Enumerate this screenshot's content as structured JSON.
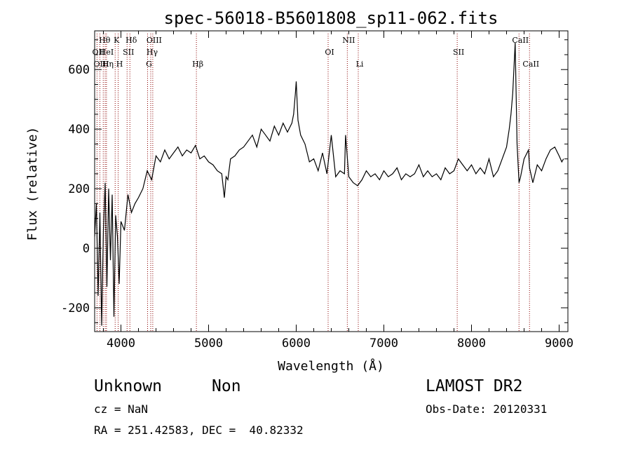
{
  "chart_data": {
    "type": "line",
    "title": "spec-56018-B5601808_sp11-062.fits",
    "xlabel": "Wavelength (Å)",
    "ylabel": "Flux (relative)",
    "xlim": [
      3700,
      9100
    ],
    "ylim": [
      -280,
      730
    ],
    "xticks": [
      4000,
      5000,
      6000,
      7000,
      8000,
      9000
    ],
    "yticks": [
      -200,
      0,
      200,
      400,
      600
    ],
    "grid": false,
    "line_color": "#000000",
    "line_marker_color": "#8b0000",
    "series": [
      {
        "x": [
          3700,
          3720,
          3740,
          3760,
          3780,
          3800,
          3820,
          3840,
          3860,
          3880,
          3900,
          3920,
          3940,
          3960,
          3980,
          4000,
          4040,
          4080,
          4120,
          4160,
          4200,
          4250,
          4300,
          4350,
          4400,
          4450,
          4500,
          4550,
          4600,
          4650,
          4700,
          4750,
          4800,
          4850,
          4900,
          4950,
          5000,
          5050,
          5100,
          5150,
          5180,
          5200,
          5220,
          5250,
          5300,
          5350,
          5400,
          5450,
          5500,
          5550,
          5600,
          5650,
          5700,
          5750,
          5800,
          5850,
          5900,
          5950,
          5970,
          5990,
          6000,
          6020,
          6050,
          6100,
          6150,
          6200,
          6250,
          6300,
          6350,
          6400,
          6450,
          6500,
          6550,
          6563,
          6600,
          6650,
          6700,
          6750,
          6800,
          6850,
          6900,
          6950,
          7000,
          7050,
          7100,
          7150,
          7200,
          7250,
          7300,
          7350,
          7400,
          7450,
          7500,
          7550,
          7600,
          7650,
          7700,
          7750,
          7800,
          7850,
          7900,
          7950,
          8000,
          8050,
          8100,
          8150,
          8200,
          8250,
          8300,
          8350,
          8400,
          8430,
          8450,
          8470,
          8498,
          8520,
          8542,
          8560,
          8600,
          8650,
          8662,
          8700,
          8750,
          8800,
          8850,
          8900,
          8950,
          9000,
          9030,
          9050
        ],
        "y": [
          40,
          150,
          -160,
          120,
          -260,
          60,
          220,
          -130,
          200,
          -40,
          180,
          -230,
          110,
          40,
          -120,
          90,
          60,
          180,
          120,
          150,
          170,
          200,
          260,
          230,
          310,
          290,
          330,
          300,
          320,
          340,
          310,
          330,
          320,
          345,
          300,
          310,
          290,
          280,
          260,
          250,
          170,
          240,
          230,
          300,
          310,
          330,
          340,
          360,
          380,
          340,
          400,
          380,
          360,
          410,
          380,
          420,
          390,
          420,
          450,
          520,
          560,
          430,
          380,
          350,
          290,
          300,
          260,
          320,
          250,
          380,
          240,
          260,
          250,
          380,
          240,
          220,
          210,
          230,
          260,
          240,
          250,
          230,
          260,
          240,
          250,
          270,
          230,
          250,
          240,
          250,
          280,
          240,
          260,
          240,
          250,
          230,
          270,
          250,
          260,
          300,
          280,
          260,
          280,
          250,
          270,
          250,
          300,
          240,
          260,
          300,
          340,
          400,
          450,
          520,
          690,
          350,
          220,
          240,
          300,
          330,
          270,
          220,
          280,
          260,
          300,
          330,
          340,
          310,
          290,
          300
        ]
      }
    ],
    "line_labels": [
      {
        "label": "Hθ",
        "x": 3798,
        "row": 0
      },
      {
        "label": "OII",
        "x": 3727,
        "row": 1
      },
      {
        "label": "HeI",
        "x": 3820,
        "row": 1
      },
      {
        "label": "OIII",
        "x": 3760,
        "row": 2
      },
      {
        "label": "Hη",
        "x": 3835,
        "row": 2
      },
      {
        "label": "K",
        "x": 3934,
        "row": 0
      },
      {
        "label": "SII",
        "x": 4070,
        "row": 1
      },
      {
        "label": "H",
        "x": 3968,
        "row": 2
      },
      {
        "label": "Hδ",
        "x": 4102,
        "row": 0
      },
      {
        "label": "OIII",
        "x": 4363,
        "row": 0
      },
      {
        "label": "Hγ",
        "x": 4340,
        "row": 1
      },
      {
        "label": "G",
        "x": 4304,
        "row": 2
      },
      {
        "label": "Hβ",
        "x": 4861,
        "row": 2
      },
      {
        "label": "OI",
        "x": 6364,
        "row": 1
      },
      {
        "label": "NII",
        "x": 6583,
        "row": 0
      },
      {
        "label": "Li",
        "x": 6708,
        "row": 2
      },
      {
        "label": "SII",
        "x": 7837,
        "row": 1
      },
      {
        "label": "CaII",
        "x": 8542,
        "row": 0
      },
      {
        "label": "CaII",
        "x": 8662,
        "row": 2
      }
    ]
  },
  "info": {
    "class_label": "Unknown",
    "subclass_label": "Non",
    "survey_label": "LAMOST DR2",
    "cz_text": "cz = NaN",
    "obs_date_text": "Obs-Date: 20120331",
    "coords_text": "RA = 251.42583, DEC =  40.82332"
  }
}
